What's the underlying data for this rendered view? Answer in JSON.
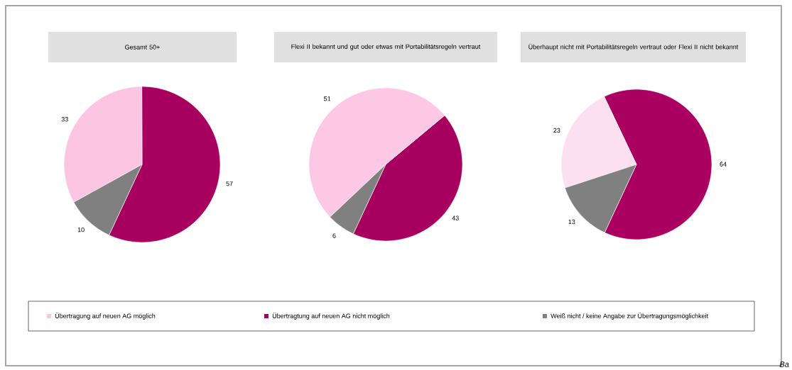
{
  "chart_data": [
    {
      "type": "pie",
      "title": "Gesamt 50+",
      "categories": [
        "Übertragung auf neuen AG möglich",
        "Übertragtung auf neuen AG nicht möglich",
        "Weiß nicht / keine Angabe zur Übertragungsmöglichkeit"
      ],
      "values": [
        33,
        57,
        10
      ],
      "colors": [
        "#fcc6e3",
        "#a8005f",
        "#808080"
      ],
      "data_labels": true,
      "legend": "bottom"
    },
    {
      "type": "pie",
      "title": "Flexi II bekannt und gut oder etwas mit Portabilitätsregeln vertraut",
      "categories": [
        null,
        null,
        null
      ],
      "values": [
        51,
        43,
        6
      ],
      "colors": [
        "#fcc8e6",
        "#a8005f",
        "#808080"
      ],
      "data_labels": true
    },
    {
      "type": "pie",
      "title": "Überhaupt nicht mit Portabilitätsregeln vertraut oder Flexi II nicht bekannt",
      "categories": [
        null,
        null,
        null
      ],
      "values": [
        23,
        64,
        13
      ],
      "colors": [
        "#fde0f0",
        "#aa0061",
        "#808080"
      ],
      "data_labels": true,
      "annotations": [
        "Ba"
      ]
    }
  ]
}
